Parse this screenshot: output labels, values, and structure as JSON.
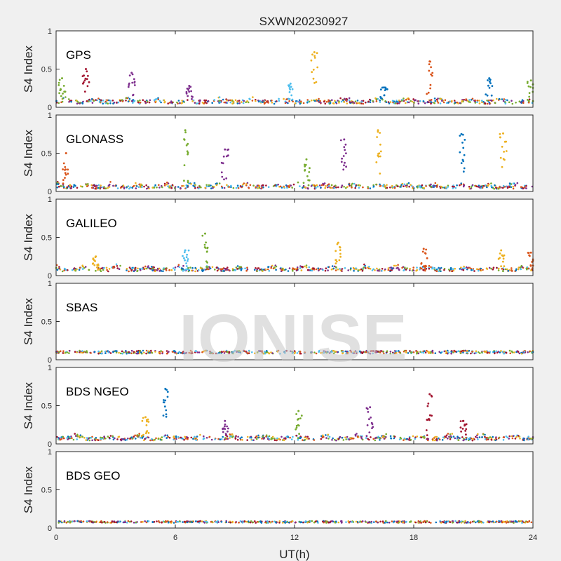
{
  "title": "SXWN20230927",
  "watermark": "IONISE",
  "colors": {
    "background": "#f0f0f0",
    "axes_bg": "#ffffff",
    "axis": "#262626",
    "palette": [
      "#0072BD",
      "#D95319",
      "#EDB120",
      "#7E2F8E",
      "#77AC30",
      "#4DBEEE",
      "#A2142F"
    ]
  },
  "chart_data": [
    {
      "type": "scatter",
      "panel_label": "GPS",
      "ylabel": "S4 Index",
      "ylim": [
        0,
        1
      ],
      "yticks": [
        "0",
        "0.5",
        "1"
      ],
      "grid": false,
      "baseline": 0.07,
      "noise": 0.025,
      "arcs": 12,
      "spikes": [
        [
          0.3,
          0.38,
          4
        ],
        [
          1.5,
          0.5,
          6
        ],
        [
          3.8,
          0.45,
          3
        ],
        [
          6.7,
          0.28,
          3
        ],
        [
          11.8,
          0.31,
          5
        ],
        [
          13.0,
          0.72,
          2
        ],
        [
          16.5,
          0.26,
          0
        ],
        [
          18.8,
          0.6,
          1
        ],
        [
          21.8,
          0.38,
          0
        ],
        [
          23.9,
          0.35,
          4
        ]
      ]
    },
    {
      "type": "scatter",
      "panel_label": "GLONASS",
      "ylabel": "S4 Index",
      "ylim": [
        0,
        1
      ],
      "yticks": [
        "0",
        "0.5",
        "1"
      ],
      "grid": false,
      "baseline": 0.06,
      "noise": 0.025,
      "arcs": 14,
      "spikes": [
        [
          0.5,
          0.5,
          1
        ],
        [
          6.5,
          0.8,
          4
        ],
        [
          8.5,
          0.55,
          3
        ],
        [
          12.6,
          0.42,
          4
        ],
        [
          14.5,
          0.68,
          3
        ],
        [
          16.2,
          0.8,
          2
        ],
        [
          20.4,
          0.75,
          0
        ],
        [
          22.5,
          0.76,
          2
        ]
      ]
    },
    {
      "type": "scatter",
      "panel_label": "GALILEO",
      "ylabel": "S4 Index",
      "ylim": [
        0,
        1
      ],
      "yticks": [
        "0",
        "0.5",
        "1"
      ],
      "grid": false,
      "baseline": 0.08,
      "noise": 0.025,
      "arcs": 12,
      "spikes": [
        [
          2.0,
          0.25,
          2
        ],
        [
          6.5,
          0.33,
          5
        ],
        [
          7.5,
          0.55,
          4
        ],
        [
          14.2,
          0.43,
          2
        ],
        [
          18.5,
          0.35,
          1
        ],
        [
          22.4,
          0.33,
          2
        ],
        [
          23.9,
          0.3,
          1
        ]
      ]
    },
    {
      "type": "scatter",
      "panel_label": "SBAS",
      "ylabel": "S4 Index",
      "ylim": [
        0,
        1
      ],
      "yticks": [
        "0",
        "0.5",
        "1"
      ],
      "grid": false,
      "baseline": 0.1,
      "noise": 0.02,
      "arcs": 0,
      "spikes": []
    },
    {
      "type": "scatter",
      "panel_label": "BDS NGEO",
      "ylabel": "S4 Index",
      "ylim": [
        0,
        1
      ],
      "yticks": [
        "0",
        "0.5",
        "1"
      ],
      "grid": false,
      "baseline": 0.07,
      "noise": 0.025,
      "arcs": 12,
      "spikes": [
        [
          4.5,
          0.35,
          2
        ],
        [
          5.5,
          0.72,
          0
        ],
        [
          8.5,
          0.3,
          3
        ],
        [
          12.2,
          0.43,
          4
        ],
        [
          15.8,
          0.48,
          3
        ],
        [
          18.8,
          0.65,
          6
        ],
        [
          20.5,
          0.3,
          6
        ]
      ]
    },
    {
      "type": "scatter",
      "panel_label": "BDS GEO",
      "ylabel": "S4 Index",
      "ylim": [
        0,
        1
      ],
      "yticks": [
        "0",
        "0.5",
        "1"
      ],
      "grid": false,
      "baseline": 0.08,
      "noise": 0.012,
      "arcs": 0,
      "spikes": []
    }
  ],
  "xaxis": {
    "label": "UT(h)",
    "xlim": [
      0,
      24
    ],
    "ticks": [
      "0",
      "6",
      "12",
      "18",
      "24"
    ]
  }
}
